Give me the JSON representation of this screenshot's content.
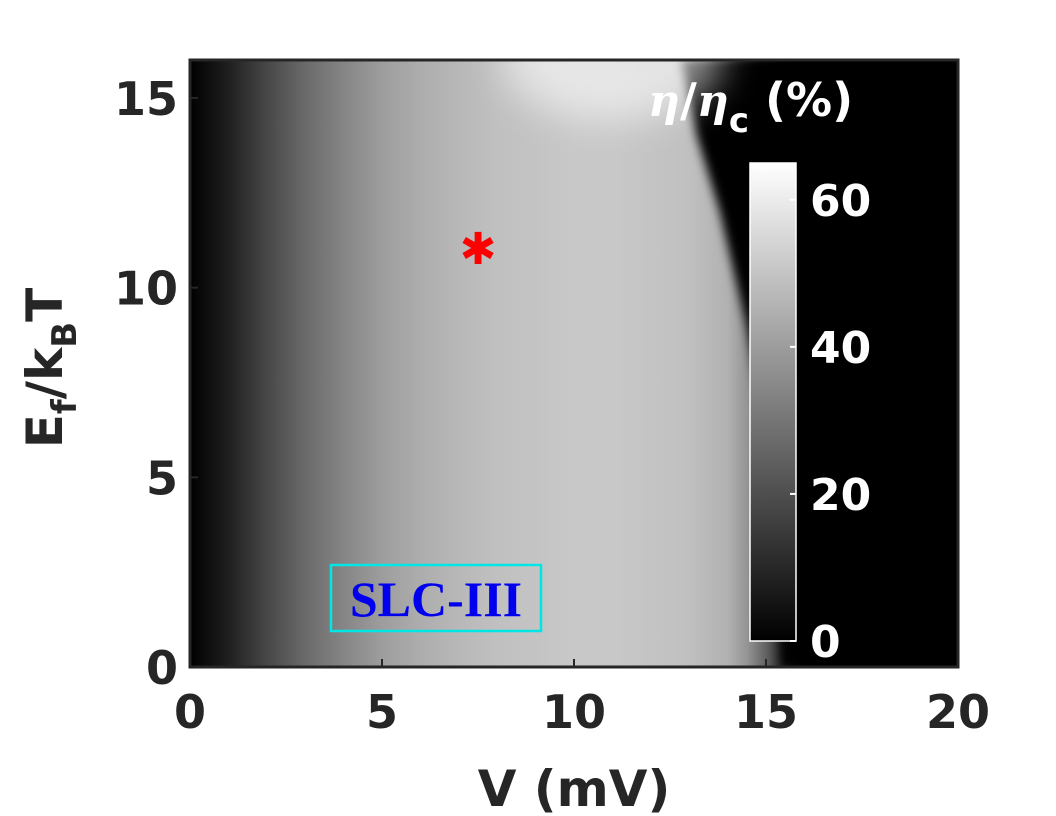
{
  "chart_data": {
    "type": "heatmap",
    "title": "",
    "xlabel": "V (mV)",
    "ylabel": {
      "main": "E",
      "sub1": "f",
      "mid": "/k",
      "sub2": "B",
      "end": "T"
    },
    "xlim": [
      0,
      20
    ],
    "ylim": [
      0,
      16
    ],
    "xticks": [
      0,
      5,
      10,
      15,
      20
    ],
    "yticks": [
      0,
      5,
      10,
      15
    ],
    "colormap": "gray",
    "colorbar": {
      "title": {
        "eta": "η",
        "slash": "/",
        "eta_c": "η",
        "sub": "c",
        "unit": " (%)"
      },
      "range": [
        0,
        65
      ],
      "ticks": [
        0,
        20,
        40,
        60
      ]
    },
    "marker": {
      "x": 7.5,
      "y": 11,
      "symbol": "✱",
      "color": "#ff0000"
    },
    "annotation": {
      "text": "SLC-III",
      "box_color": "#00e5e5",
      "text_color": "#0000ee"
    },
    "efficiency_profile": {
      "V": [
        0,
        1,
        2,
        3,
        4,
        5,
        6,
        7,
        8,
        9,
        10,
        11,
        12,
        13,
        14,
        14.5,
        15,
        15.5,
        16,
        20
      ],
      "eta_percent": [
        0,
        8,
        18,
        27,
        34,
        40,
        44,
        47,
        49,
        50,
        51,
        51,
        50,
        49,
        45,
        38,
        25,
        8,
        0,
        0
      ]
    },
    "peak_region": {
      "V": 11,
      "E": 16,
      "eta_percent": 64
    },
    "cutoff_V": [
      15.4,
      15.3,
      15.0,
      14.5,
      13.8,
      13.2,
      12.8
    ],
    "cutoff_E": [
      0,
      3,
      6,
      9,
      12,
      14,
      16
    ]
  }
}
